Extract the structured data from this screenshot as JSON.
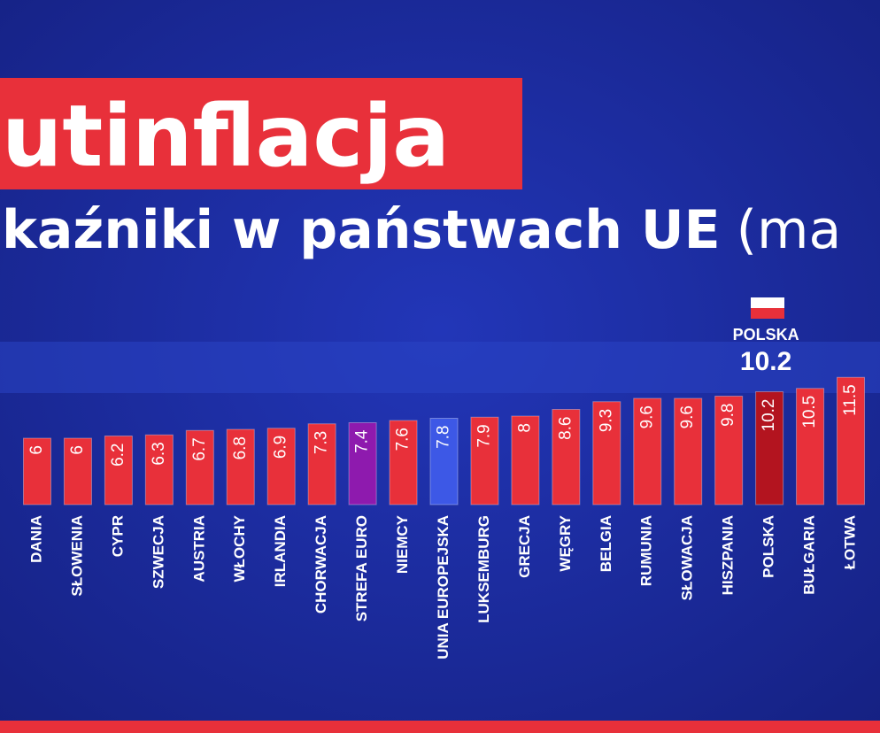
{
  "chart_data": {
    "type": "bar",
    "title": "utinflacja",
    "subtitle": "kaźniki w państwach UE",
    "subtitle_suffix": "(ma",
    "categories": [
      "DANIA",
      "SŁOWENIA",
      "CYPR",
      "SZWECJA",
      "AUSTRIA",
      "WŁOCHY",
      "IRLANDIA",
      "CHORWACJA",
      "STREFA EURO",
      "NIEMCY",
      "UNIA EUROPEJSKA",
      "LUKSEMBURG",
      "GRECJA",
      "WĘGRY",
      "BELGIA",
      "RUMUNIA",
      "SŁOWACJA",
      "HISZPANIA",
      "POLSKA",
      "BUŁGARIA",
      "ŁOTWA"
    ],
    "values": [
      6.0,
      6.0,
      6.2,
      6.3,
      6.7,
      6.8,
      6.9,
      7.3,
      7.4,
      7.6,
      7.8,
      7.9,
      8.0,
      8.6,
      9.3,
      9.6,
      9.6,
      9.8,
      10.2,
      10.5,
      11.5
    ],
    "colors": [
      "#e8303a",
      "#e8303a",
      "#e8303a",
      "#e8303a",
      "#e8303a",
      "#e8303a",
      "#e8303a",
      "#e8303a",
      "#8e1aae",
      "#e8303a",
      "#3d58e6",
      "#e8303a",
      "#e8303a",
      "#e8303a",
      "#e8303a",
      "#e8303a",
      "#e8303a",
      "#e8303a",
      "#b3141f",
      "#e8303a",
      "#e8303a"
    ],
    "highlight_index": 18,
    "ylim": [
      0,
      12
    ]
  }
}
